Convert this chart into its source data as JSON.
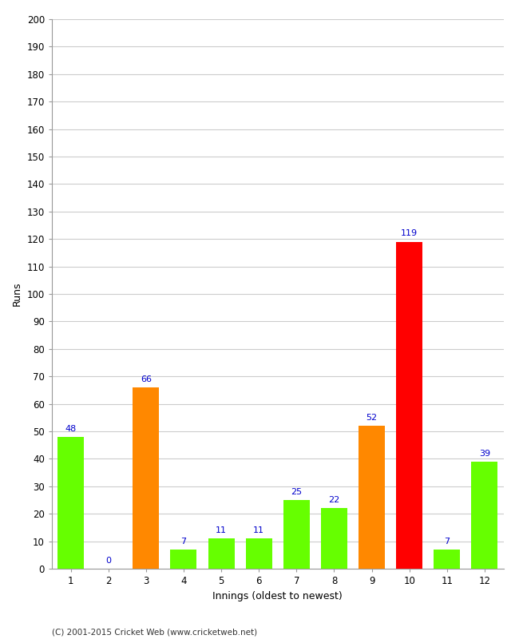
{
  "innings": [
    1,
    2,
    3,
    4,
    5,
    6,
    7,
    8,
    9,
    10,
    11,
    12
  ],
  "runs": [
    48,
    0,
    66,
    7,
    11,
    11,
    25,
    22,
    52,
    119,
    7,
    39
  ],
  "bar_colors": [
    "#66ff00",
    "#66ff00",
    "#ff8800",
    "#66ff00",
    "#66ff00",
    "#66ff00",
    "#66ff00",
    "#66ff00",
    "#ff8800",
    "#ff0000",
    "#66ff00",
    "#66ff00"
  ],
  "xlabel": "Innings (oldest to newest)",
  "ylabel": "Runs",
  "ylim": [
    0,
    200
  ],
  "yticks": [
    0,
    10,
    20,
    30,
    40,
    50,
    60,
    70,
    80,
    90,
    100,
    110,
    120,
    130,
    140,
    150,
    160,
    170,
    180,
    190,
    200
  ],
  "label_color": "#0000cc",
  "label_fontsize": 8,
  "axis_label_fontsize": 9,
  "tick_fontsize": 8.5,
  "background_color": "#ffffff",
  "grid_color": "#cccccc",
  "footer": "(C) 2001-2015 Cricket Web (www.cricketweb.net)",
  "bar_width": 0.7
}
